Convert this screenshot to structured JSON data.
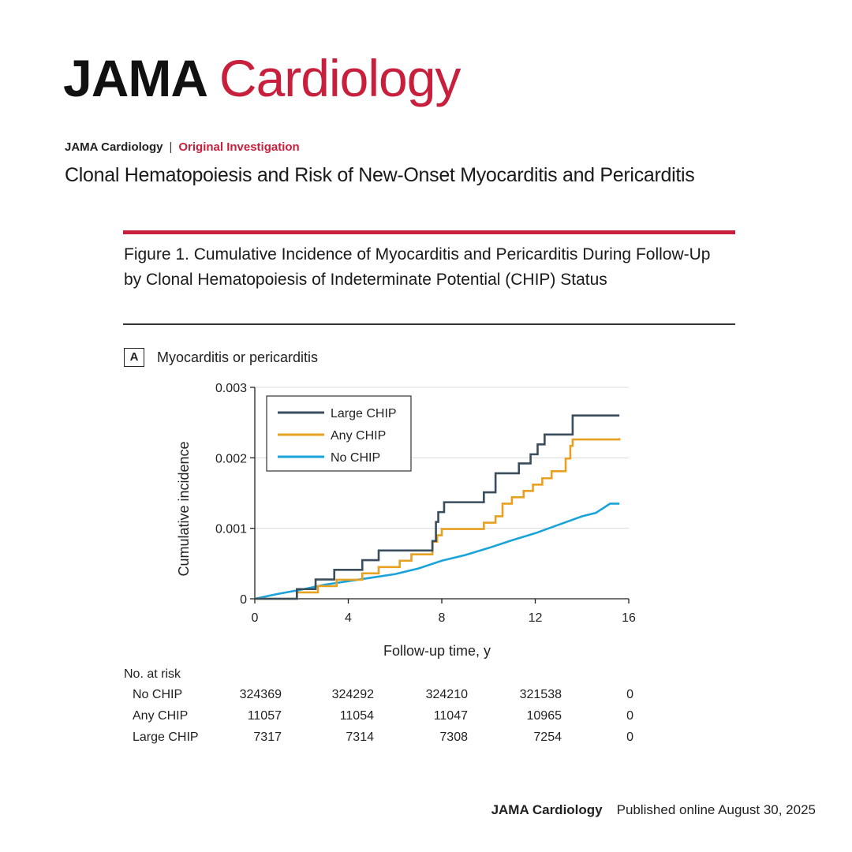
{
  "header": {
    "brand_left": "JAMA",
    "brand_right": "Cardiology",
    "journal": "JAMA Cardiology",
    "separator": "|",
    "article_type": "Original Investigation",
    "article_title": "Clonal Hematopoiesis and Risk of New-Onset Myocarditis and Pericarditis"
  },
  "figure": {
    "caption": "Figure 1. Cumulative Incidence of Myocarditis and Pericarditis During Follow-Up by Clonal Hematopoiesis of Indeterminate Potential (CHIP) Status",
    "panel_letter": "A",
    "panel_title": "Myocarditis or pericarditis"
  },
  "colors": {
    "accent": "#c8203c",
    "large_chip": "#3a4d5c",
    "any_chip": "#e8a020",
    "no_chip": "#1aa3d9"
  },
  "chart_data": {
    "type": "line",
    "title": "Myocarditis or pericarditis",
    "xlabel": "Follow-up time, y",
    "ylabel": "Cumulative incidence",
    "xlim": [
      0,
      16
    ],
    "ylim": [
      0,
      0.003
    ],
    "x_ticks": [
      0,
      4,
      8,
      12,
      16
    ],
    "y_ticks": [
      0,
      0.001,
      0.002,
      0.003
    ],
    "y_tick_labels": [
      "0",
      "0.001",
      "0.002",
      "0.003"
    ],
    "grid": true,
    "legend_position": "top-left",
    "series": [
      {
        "name": "Large CHIP",
        "color": "#3a4d5c",
        "step": true,
        "x": [
          0,
          1.8,
          2.6,
          3.4,
          4.6,
          5.3,
          7.6,
          7.75,
          7.85,
          7.9,
          8.1,
          9.8,
          10.3,
          11.3,
          11.8,
          12.1,
          12.4,
          12.6,
          13.6,
          15.6
        ],
        "y": [
          0,
          0.000137,
          0.000274,
          0.000411,
          0.000548,
          0.000685,
          0.00082,
          0.00109,
          0.00123,
          0.00123,
          0.00137,
          0.00151,
          0.00178,
          0.00192,
          0.00205,
          0.00219,
          0.00233,
          0.00233,
          0.0026,
          0.0026
        ]
      },
      {
        "name": "Any CHIP",
        "color": "#e8a020",
        "step": true,
        "x": [
          0,
          1.8,
          2.7,
          3.5,
          4.6,
          5.3,
          6.2,
          6.7,
          7.6,
          7.8,
          8.0,
          9.8,
          10.3,
          10.6,
          11.0,
          11.5,
          11.9,
          12.3,
          12.7,
          13.3,
          13.5,
          13.6,
          15.6
        ],
        "y": [
          0,
          9e-05,
          0.00018,
          0.00027,
          0.00036,
          0.00045,
          0.00054,
          0.00063,
          0.00081,
          0.0009,
          0.00099,
          0.00108,
          0.00117,
          0.00135,
          0.00144,
          0.00153,
          0.00162,
          0.00171,
          0.00181,
          0.00199,
          0.00217,
          0.00226,
          0.00228
        ]
      },
      {
        "name": "No CHIP",
        "color": "#1aa3d9",
        "step": false,
        "x": [
          0,
          1,
          2,
          3,
          4,
          5,
          6,
          7,
          8,
          9,
          10,
          11,
          12,
          13,
          14,
          14.6,
          15.2,
          15.6
        ],
        "y": [
          0,
          7e-05,
          0.00013,
          0.0002,
          0.00025,
          0.0003,
          0.00035,
          0.00043,
          0.00054,
          0.00062,
          0.00072,
          0.00083,
          0.00093,
          0.00105,
          0.00117,
          0.00122,
          0.00135,
          0.00135
        ]
      }
    ],
    "at_risk": {
      "title": "No. at risk",
      "time_points": [
        0,
        4,
        8,
        12,
        16
      ],
      "rows": [
        {
          "label": "No CHIP",
          "values": [
            "324369",
            "324292",
            "324210",
            "321538",
            "0"
          ]
        },
        {
          "label": "Any CHIP",
          "values": [
            "11057",
            "11054",
            "11047",
            "10965",
            "0"
          ]
        },
        {
          "label": "Large CHIP",
          "values": [
            "7317",
            "7314",
            "7308",
            "7254",
            "0"
          ]
        }
      ]
    }
  },
  "footer": {
    "journal": "JAMA Cardiology",
    "published": "Published online August  30, 2025"
  }
}
